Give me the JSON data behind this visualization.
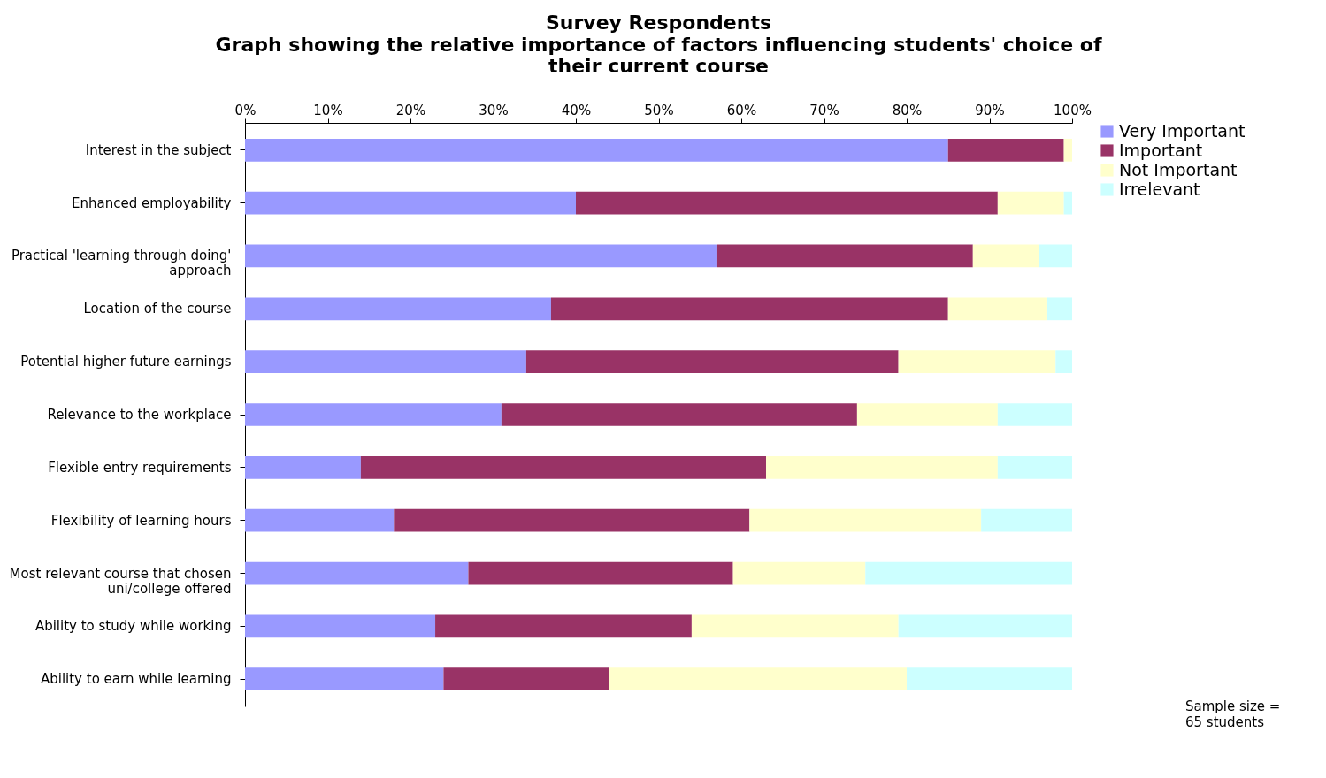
{
  "chart_data": {
    "type": "bar",
    "orientation": "horizontal",
    "stacked": true,
    "title": "Survey Respondents",
    "subtitle": "Graph showing the relative importance of factors influencing students' choice of their current course",
    "categories": [
      "Interest in the subject",
      "Enhanced employability",
      "Practical 'learning through doing' approach",
      "Location of the course",
      "Potential higher future earnings",
      "Relevance to the workplace",
      "Flexible entry requirements",
      "Flexibility of learning hours",
      "Most relevant course that chosen uni/college offered",
      "Ability to study while working",
      "Ability to earn while learning"
    ],
    "series": [
      {
        "name": "Very Important",
        "color": "#9999ff",
        "values": [
          85,
          40,
          57,
          37,
          34,
          31,
          14,
          18,
          27,
          23,
          24
        ]
      },
      {
        "name": "Important",
        "color": "#993366",
        "values": [
          14,
          51,
          31,
          48,
          45,
          43,
          49,
          43,
          32,
          31,
          20
        ]
      },
      {
        "name": "Not Important",
        "color": "#ffffcc",
        "values": [
          1,
          8,
          8,
          12,
          19,
          17,
          28,
          28,
          16,
          25,
          36
        ]
      },
      {
        "name": "Irrelevant",
        "color": "#ccffff",
        "values": [
          0,
          1,
          4,
          3,
          2,
          9,
          9,
          11,
          25,
          21,
          20
        ]
      }
    ],
    "xlim": [
      0,
      100
    ],
    "xticks": [
      {
        "value": 0,
        "label": "0%"
      },
      {
        "value": 10,
        "label": "10%"
      },
      {
        "value": 20,
        "label": "20%"
      },
      {
        "value": 30,
        "label": "30%"
      },
      {
        "value": 40,
        "label": "40%"
      },
      {
        "value": 50,
        "label": "50%"
      },
      {
        "value": 60,
        "label": "60%"
      },
      {
        "value": 70,
        "label": "70%"
      },
      {
        "value": 80,
        "label": "80%"
      },
      {
        "value": 90,
        "label": "90%"
      },
      {
        "value": 100,
        "label": "100%"
      }
    ],
    "grid": false,
    "legend": "right",
    "annotations": [
      "Sample size = 65 students"
    ]
  }
}
